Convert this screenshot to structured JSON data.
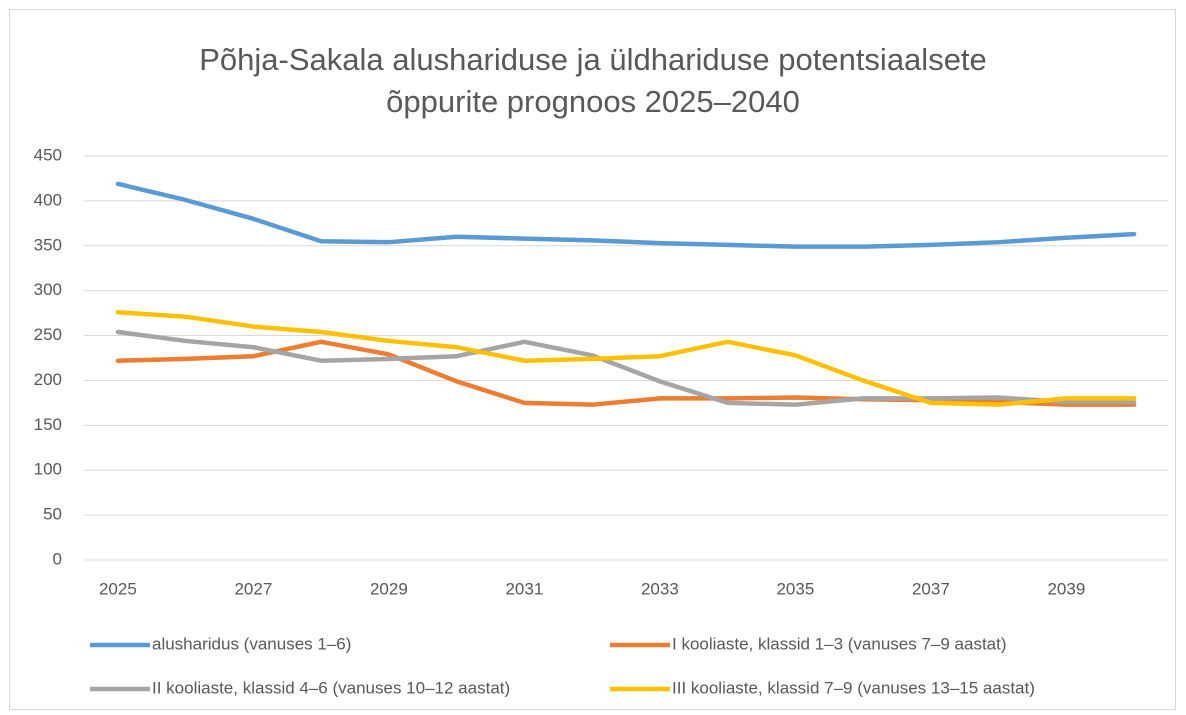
{
  "chart_data": {
    "type": "line",
    "title": [
      "Põhja-Sakala alushariduse ja üldhariduse potentsiaalsete",
      "õppurite prognoos 2025–2040"
    ],
    "categories": [
      "2025",
      null,
      "2027",
      null,
      "2029",
      null,
      "2031",
      null,
      "2033",
      null,
      "2035",
      null,
      "2037",
      null,
      "2039",
      null
    ],
    "series": [
      {
        "name": "alusharidus (vanuses 1–6)",
        "color": "#5b9bd5",
        "values": [
          419,
          401,
          380,
          355,
          354,
          360,
          358,
          356,
          353,
          351,
          349,
          349,
          351,
          354,
          359,
          363
        ]
      },
      {
        "name": "I kooliaste, klassid 1–3 (vanuses 7–9 aastat)",
        "color": "#ed7d31",
        "values": [
          222,
          224,
          227,
          243,
          229,
          199,
          175,
          173,
          180,
          180,
          181,
          179,
          178,
          176,
          173,
          173
        ]
      },
      {
        "name": "II kooliaste, klassid 4–6 (vanuses 10–12 aastat)",
        "color": "#a5a5a5",
        "values": [
          254,
          244,
          237,
          222,
          224,
          227,
          243,
          228,
          199,
          175,
          173,
          180,
          180,
          181,
          176,
          176
        ]
      },
      {
        "name": "III kooliaste, klassid 7–9 (vanuses 13–15 aastat)",
        "color": "#ffc000",
        "values": [
          276,
          271,
          260,
          254,
          244,
          237,
          222,
          224,
          227,
          243,
          228,
          200,
          175,
          173,
          180,
          180
        ]
      }
    ],
    "ylim": [
      0,
      450
    ],
    "yticks": [
      0,
      50,
      100,
      150,
      200,
      250,
      300,
      350,
      400,
      450
    ],
    "grid": true,
    "legend": "bottom"
  }
}
